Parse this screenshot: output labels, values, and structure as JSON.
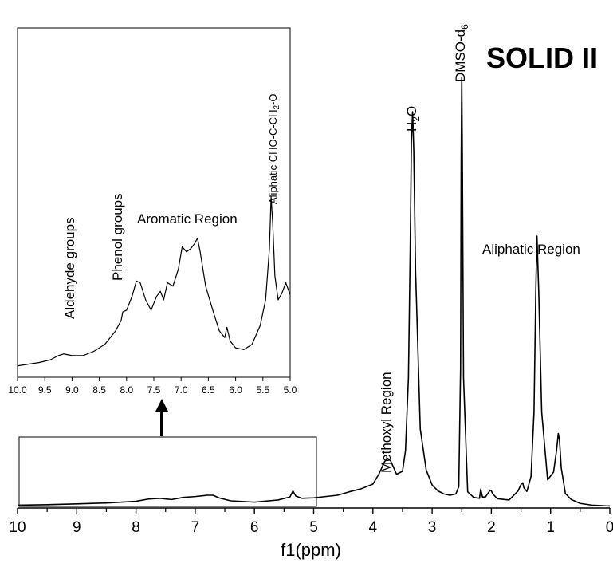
{
  "chart_data": [
    {
      "type": "line",
      "title": "SOLID II",
      "xlabel": "f1(ppm)",
      "ylabel": "",
      "xlim": [
        10,
        0
      ],
      "x_reversed": true,
      "ylim": [
        0,
        100
      ],
      "y_axis_visible": false,
      "grid": false,
      "legend": "none",
      "x_ticks": [
        10,
        9,
        8,
        7,
        6,
        5,
        4,
        3,
        2,
        1,
        0
      ],
      "x_tick_labels": [
        "10",
        "9",
        "8",
        "7",
        "6",
        "5",
        "4",
        "3",
        "2",
        "1",
        "0"
      ],
      "series": [
        {
          "x": [
            10.0,
            9.5,
            9.0,
            8.5,
            8.0,
            7.8,
            7.6,
            7.4,
            7.2,
            7.0,
            6.8,
            6.7,
            6.6,
            6.4,
            6.0,
            5.6,
            5.4,
            5.35,
            5.3,
            5.2,
            5.0,
            4.6,
            4.4,
            4.2,
            4.0,
            3.9,
            3.8,
            3.75,
            3.7,
            3.6,
            3.5,
            3.45,
            3.4,
            3.37,
            3.35,
            3.33,
            3.31,
            3.28,
            3.2,
            3.1,
            3.0,
            2.9,
            2.8,
            2.7,
            2.6,
            2.55,
            2.52,
            2.51,
            2.5,
            2.49,
            2.47,
            2.4,
            2.3,
            2.2,
            2.18,
            2.15,
            2.1,
            2.02,
            2.0,
            1.98,
            1.9,
            1.7,
            1.55,
            1.5,
            1.47,
            1.45,
            1.4,
            1.33,
            1.28,
            1.25,
            1.23,
            1.2,
            1.15,
            1.05,
            0.95,
            0.9,
            0.87,
            0.85,
            0.82,
            0.75,
            0.65,
            0.5,
            0.3,
            0.0
          ],
          "y": [
            0.3,
            0.4,
            0.6,
            0.8,
            1.2,
            1.7,
            1.9,
            1.6,
            2.1,
            2.3,
            2.6,
            2.6,
            2.0,
            1.3,
            1.0,
            1.5,
            2.2,
            3.6,
            2.4,
            1.9,
            2.0,
            2.6,
            3.4,
            4.1,
            5.2,
            7.5,
            10.5,
            11.2,
            10.6,
            7.5,
            8.2,
            13.0,
            30.0,
            60.0,
            85.0,
            92.0,
            83.0,
            55.0,
            18.0,
            8.5,
            5.0,
            3.6,
            2.9,
            2.6,
            2.9,
            4.6,
            32.0,
            80.0,
            100.0,
            82.0,
            30.0,
            3.4,
            2.1,
            1.9,
            4.0,
            2.2,
            2.2,
            3.8,
            3.6,
            3.0,
            1.8,
            1.5,
            3.6,
            5.1,
            5.5,
            4.3,
            3.5,
            7.0,
            22.0,
            50.0,
            63.0,
            50.0,
            22.0,
            6.2,
            8.0,
            13.0,
            17.0,
            15.5,
            9.0,
            3.0,
            1.6,
            0.7,
            0.3,
            0.1
          ]
        }
      ],
      "annotations": [
        "Methoxyl Region",
        "H2O",
        "DMSO-d6",
        "Aliphatic Region"
      ]
    },
    {
      "type": "line",
      "title": "",
      "xlabel": "",
      "ylabel": "",
      "xlim": [
        10,
        5
      ],
      "x_reversed": true,
      "ylim": [
        0,
        100
      ],
      "y_axis_visible": false,
      "grid": false,
      "legend": "none",
      "x_ticks": [
        10.0,
        9.5,
        9.0,
        8.5,
        8.0,
        7.5,
        7.0,
        6.5,
        6.0,
        5.5,
        5.0
      ],
      "x_tick_labels": [
        "10.0",
        "9.5",
        "9.0",
        "8.5",
        "8.0",
        "7.5",
        "7.0",
        "6.5",
        "6.0",
        "5.5",
        "5.0"
      ],
      "series": [
        {
          "x": [
            10.0,
            9.8,
            9.6,
            9.4,
            9.25,
            9.15,
            9.0,
            8.8,
            8.6,
            8.4,
            8.2,
            8.1,
            8.07,
            8.0,
            7.9,
            7.82,
            7.75,
            7.65,
            7.55,
            7.45,
            7.38,
            7.32,
            7.25,
            7.15,
            7.05,
            6.98,
            6.9,
            6.82,
            6.75,
            6.7,
            6.65,
            6.55,
            6.4,
            6.3,
            6.2,
            6.16,
            6.1,
            6.0,
            5.85,
            5.7,
            5.55,
            5.45,
            5.38,
            5.35,
            5.32,
            5.28,
            5.22,
            5.15,
            5.08,
            5.0
          ],
          "y": [
            1.5,
            2.5,
            3.5,
            5.0,
            7.5,
            8.5,
            7.5,
            7.5,
            10.0,
            14.0,
            22.0,
            28.0,
            33.0,
            34.0,
            42.0,
            51.0,
            50.0,
            40.0,
            34.0,
            42.0,
            45.0,
            40.0,
            50.0,
            48.0,
            58.0,
            71.0,
            68.0,
            70.0,
            73.0,
            76.0,
            68.0,
            48.0,
            32.0,
            22.0,
            18.0,
            24.0,
            16.0,
            12.0,
            11.0,
            14.0,
            25.0,
            40.0,
            70.0,
            100.0,
            85.0,
            54.0,
            40.0,
            44.0,
            50.0,
            43.0
          ]
        }
      ],
      "annotations": [
        "Aldehyde groups",
        "Phenol groups",
        "Aromatic Region",
        "Aliphatic CHO-C-CH2-O"
      ]
    }
  ],
  "labels": {
    "methoxyl": "Methoxyl Region",
    "h2o_main": "H",
    "h2o_sub": "2",
    "h2o_end": "O",
    "dmso_main": "DMSO-d",
    "dmso_sub": "6",
    "aliphatic": "Aliphatic Region",
    "aldehyde": "Aldehyde groups",
    "phenol": "Phenol groups",
    "aromatic": "Aromatic Region",
    "cho_main": "Aliphatic CHO-C-CH",
    "cho_sub": "2",
    "cho_end": "-O"
  }
}
